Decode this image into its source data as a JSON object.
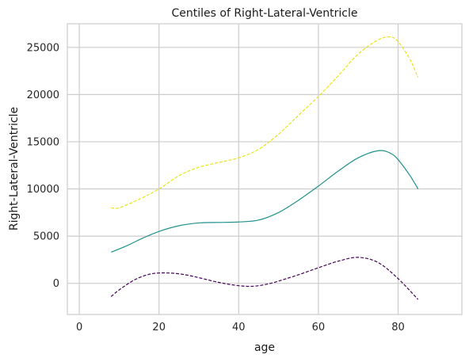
{
  "chart_data": {
    "type": "line",
    "title": "Centiles of Right-Lateral-Ventricle",
    "xlabel": "age",
    "ylabel": "Right-Lateral-Ventricle",
    "xlim": [
      -3,
      96
    ],
    "ylim": [
      -3300,
      27500
    ],
    "xticks": [
      0,
      20,
      40,
      60,
      80
    ],
    "yticks": [
      0,
      5000,
      10000,
      15000,
      20000,
      25000
    ],
    "grid": true,
    "legend": "none",
    "series": [
      {
        "color": "#e8e419",
        "dashed": true,
        "x": [
          8,
          10,
          15,
          20,
          25,
          30,
          35,
          40,
          45,
          50,
          55,
          60,
          65,
          70,
          75,
          78,
          80,
          83,
          85
        ],
        "y": [
          8000,
          8000,
          8900,
          10000,
          11400,
          12300,
          12800,
          13300,
          14200,
          15800,
          17800,
          19800,
          22000,
          24300,
          25800,
          26100,
          25600,
          23700,
          21800
        ]
      },
      {
        "color": "#21918c",
        "dashed": false,
        "x": [
          8,
          12,
          16,
          20,
          25,
          30,
          35,
          40,
          45,
          50,
          55,
          60,
          65,
          70,
          75,
          78,
          80,
          83,
          85
        ],
        "y": [
          3300,
          4000,
          4800,
          5500,
          6100,
          6400,
          6450,
          6500,
          6700,
          7500,
          8800,
          10300,
          11900,
          13300,
          14050,
          13800,
          13100,
          11400,
          10000
        ]
      },
      {
        "color": "#440154",
        "dashed": true,
        "x": [
          8,
          10,
          14,
          18,
          22,
          26,
          30,
          35,
          40,
          44,
          48,
          52,
          56,
          60,
          65,
          70,
          75,
          80,
          85
        ],
        "y": [
          -1400,
          -700,
          400,
          1000,
          1100,
          950,
          600,
          100,
          -250,
          -300,
          0,
          500,
          1050,
          1650,
          2350,
          2750,
          2200,
          500,
          -1700
        ]
      }
    ]
  }
}
